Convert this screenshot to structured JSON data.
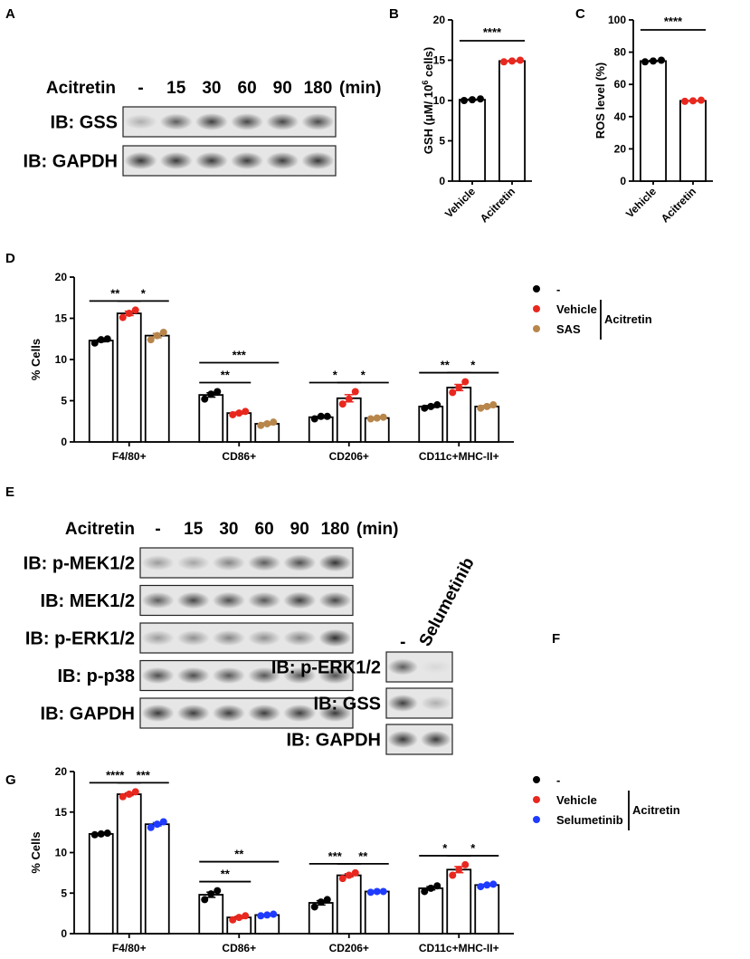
{
  "panels": {
    "A": "A",
    "B": "B",
    "C": "C",
    "D": "D",
    "E": "E",
    "F": "F",
    "G": "G"
  },
  "panel_A": {
    "lane_title": "Acitretin",
    "lanes": [
      "-",
      "15",
      "30",
      "60",
      "90",
      "180"
    ],
    "unit": "(min)",
    "blots": [
      {
        "label": "IB: GSS",
        "intensities": [
          0.35,
          0.7,
          0.85,
          0.8,
          0.8,
          0.78
        ]
      },
      {
        "label": "IB: GAPDH",
        "intensities": [
          0.9,
          0.88,
          0.88,
          0.86,
          0.86,
          0.9
        ]
      }
    ]
  },
  "panel_E": {
    "lane_title": "Acitretin",
    "lanes": [
      "-",
      "15",
      "30",
      "60",
      "90",
      "180"
    ],
    "unit": "(min)",
    "blots": [
      {
        "label": "IB: p-MEK1/2",
        "intensities": [
          0.45,
          0.4,
          0.55,
          0.7,
          0.75,
          0.92
        ]
      },
      {
        "label": "IB: MEK1/2",
        "intensities": [
          0.7,
          0.8,
          0.75,
          0.72,
          0.85,
          0.8
        ]
      },
      {
        "label": "IB: p-ERK1/2",
        "intensities": [
          0.45,
          0.5,
          0.55,
          0.5,
          0.55,
          0.95
        ]
      },
      {
        "label": "IB: p-p38",
        "intensities": [
          0.75,
          0.75,
          0.72,
          0.72,
          0.72,
          0.75
        ]
      },
      {
        "label": "IB: GAPDH",
        "intensities": [
          0.88,
          0.86,
          0.86,
          0.86,
          0.86,
          0.88
        ]
      }
    ]
  },
  "panel_F": {
    "lanes": [
      "-",
      "Selumetinib"
    ],
    "blots": [
      {
        "label": "IB: p-ERK1/2",
        "intensities": [
          0.7,
          0.05
        ]
      },
      {
        "label": "IB: GSS",
        "intensities": [
          0.85,
          0.35
        ]
      },
      {
        "label": "IB: GAPDH",
        "intensities": [
          0.9,
          0.88
        ]
      }
    ]
  },
  "chart_data": [
    {
      "id": "B",
      "type": "bar",
      "categories": [
        "Vehicle",
        "Acitretin"
      ],
      "values": [
        10.1,
        14.9
      ],
      "points": [
        [
          10.0,
          10.1,
          10.2
        ],
        [
          14.8,
          14.9,
          15.0
        ]
      ],
      "point_colors": [
        "#000000",
        "#e8281f"
      ],
      "ylabel_pre": "GSH (μM/ 10",
      "ylabel_sup": "6",
      "ylabel_post": " cells)",
      "ylim": [
        0,
        20
      ],
      "yticks": [
        0,
        5,
        10,
        15,
        20
      ],
      "sig": [
        {
          "from": 0,
          "to": 1,
          "label": "****"
        }
      ]
    },
    {
      "id": "C",
      "type": "bar",
      "categories": [
        "Vehicle",
        "Acitretin"
      ],
      "values": [
        74.5,
        49.8
      ],
      "points": [
        [
          74.0,
          74.5,
          75.0
        ],
        [
          49.5,
          49.8,
          50.2
        ]
      ],
      "point_colors": [
        "#000000",
        "#e8281f"
      ],
      "ylabel": "ROS level (%)",
      "ylim": [
        0,
        100
      ],
      "yticks": [
        0,
        20,
        40,
        60,
        80,
        100
      ],
      "sig": [
        {
          "from": 0,
          "to": 1,
          "label": "****"
        }
      ]
    },
    {
      "id": "D",
      "type": "bar",
      "categories": [
        "F4/80+",
        "CD86+",
        "CD206+",
        "CD11c+MHC-II+"
      ],
      "series": [
        {
          "name": "-",
          "color": "#000000",
          "values": [
            12.3,
            5.7,
            3.0,
            4.3
          ],
          "points": [
            [
              12.0,
              12.4,
              12.5
            ],
            [
              5.2,
              5.8,
              6.1
            ],
            [
              2.8,
              3.1,
              3.1
            ],
            [
              4.1,
              4.3,
              4.5
            ]
          ]
        },
        {
          "name": "Vehicle",
          "color": "#e8281f",
          "values": [
            15.6,
            3.5,
            5.3,
            6.6
          ],
          "points": [
            [
              15.1,
              15.6,
              16.0
            ],
            [
              3.3,
              3.5,
              3.7
            ],
            [
              4.6,
              5.2,
              6.1
            ],
            [
              6.0,
              6.6,
              7.3
            ]
          ]
        },
        {
          "name": "SAS",
          "color": "#b8864b",
          "values": [
            12.9,
            2.2,
            2.9,
            4.3
          ],
          "points": [
            [
              12.4,
              12.9,
              13.3
            ],
            [
              2.0,
              2.2,
              2.4
            ],
            [
              2.8,
              2.9,
              3.0
            ],
            [
              4.1,
              4.3,
              4.5
            ]
          ]
        }
      ],
      "ylabel": "% Cells",
      "ylim": [
        0,
        20
      ],
      "yticks": [
        0,
        5,
        10,
        15,
        20
      ],
      "legend_bracket": "Acitretin",
      "sig": [
        {
          "cat": 0,
          "from": 0,
          "to": 1,
          "label": "**",
          "level": 0
        },
        {
          "cat": 0,
          "from": 1,
          "to": 2,
          "label": "*",
          "level": 0
        },
        {
          "cat": 1,
          "from": 0,
          "to": 1,
          "label": "**",
          "level": 0
        },
        {
          "cat": 1,
          "from": 0,
          "to": 2,
          "label": "***",
          "level": 1
        },
        {
          "cat": 2,
          "from": 0,
          "to": 1,
          "label": "*",
          "level": 0
        },
        {
          "cat": 2,
          "from": 1,
          "to": 2,
          "label": "*",
          "level": 0
        },
        {
          "cat": 3,
          "from": 0,
          "to": 1,
          "label": "**",
          "level": 0
        },
        {
          "cat": 3,
          "from": 1,
          "to": 2,
          "label": "*",
          "level": 0
        }
      ]
    },
    {
      "id": "G",
      "type": "bar",
      "categories": [
        "F4/80+",
        "CD86+",
        "CD206+",
        "CD11c+MHC-II+"
      ],
      "series": [
        {
          "name": "-",
          "color": "#000000",
          "values": [
            12.3,
            4.8,
            3.8,
            5.6
          ],
          "points": [
            [
              12.2,
              12.3,
              12.4
            ],
            [
              4.2,
              4.9,
              5.3
            ],
            [
              3.3,
              3.9,
              4.2
            ],
            [
              5.2,
              5.6,
              5.9
            ]
          ]
        },
        {
          "name": "Vehicle",
          "color": "#e8281f",
          "values": [
            17.2,
            2.0,
            7.2,
            7.9
          ],
          "points": [
            [
              16.9,
              17.2,
              17.5
            ],
            [
              1.7,
              2.0,
              2.2
            ],
            [
              6.8,
              7.2,
              7.5
            ],
            [
              7.2,
              7.9,
              8.5
            ]
          ]
        },
        {
          "name": "Selumetinib",
          "color": "#1f3bff",
          "values": [
            13.5,
            2.3,
            5.2,
            6.0
          ],
          "points": [
            [
              13.1,
              13.5,
              13.8
            ],
            [
              2.2,
              2.3,
              2.4
            ],
            [
              5.1,
              5.2,
              5.2
            ],
            [
              5.8,
              6.0,
              6.1
            ]
          ]
        }
      ],
      "ylabel": "% Cells",
      "ylim": [
        0,
        20
      ],
      "yticks": [
        0,
        5,
        10,
        15,
        20
      ],
      "legend_bracket": "Acitretin",
      "sig": [
        {
          "cat": 0,
          "from": 0,
          "to": 1,
          "label": "****",
          "level": 0
        },
        {
          "cat": 0,
          "from": 1,
          "to": 2,
          "label": "***",
          "level": 0
        },
        {
          "cat": 1,
          "from": 0,
          "to": 1,
          "label": "**",
          "level": 0
        },
        {
          "cat": 1,
          "from": 0,
          "to": 2,
          "label": "**",
          "level": 1
        },
        {
          "cat": 2,
          "from": 0,
          "to": 1,
          "label": "***",
          "level": 0
        },
        {
          "cat": 2,
          "from": 1,
          "to": 2,
          "label": "**",
          "level": 0
        },
        {
          "cat": 3,
          "from": 0,
          "to": 1,
          "label": "*",
          "level": 0
        },
        {
          "cat": 3,
          "from": 1,
          "to": 2,
          "label": "*",
          "level": 0
        }
      ]
    }
  ]
}
